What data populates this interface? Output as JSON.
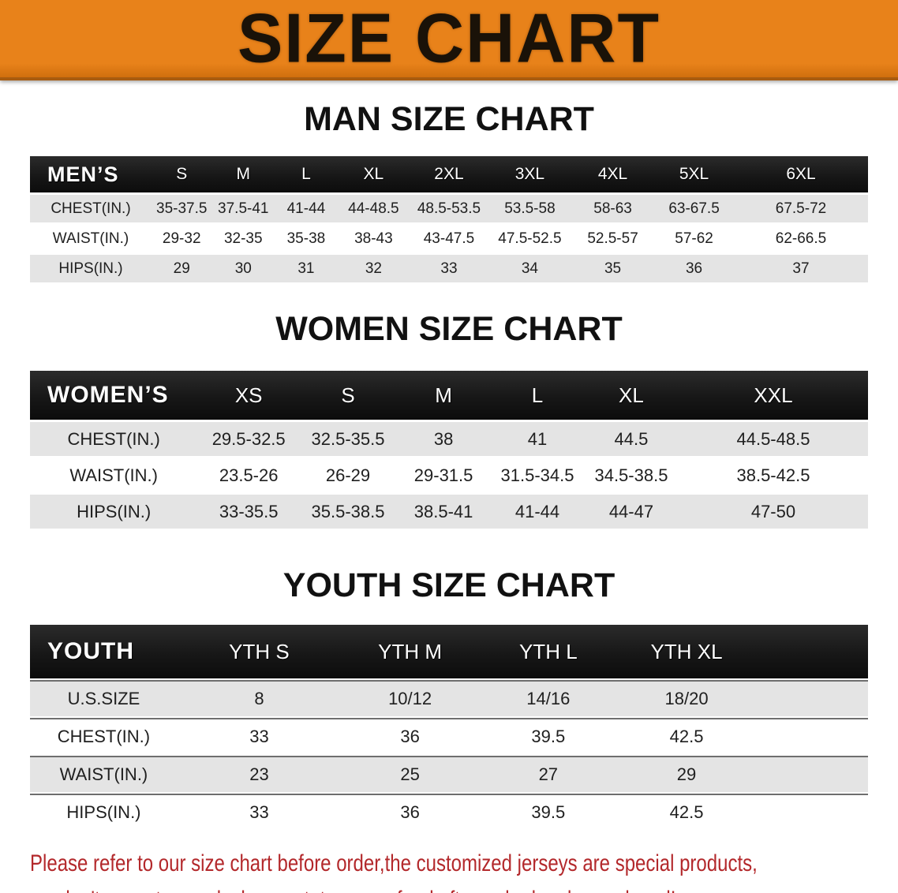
{
  "banner": {
    "title": "SIZE CHART"
  },
  "colors": {
    "banner_bg": "#e8821a",
    "banner_text": "#1a1208",
    "header_band_bg": "#171717",
    "header_band_text": "#ffffff",
    "row_stripe_bg": "#e4e4e4",
    "table_text": "#1f1f1f",
    "footnote_text": "#b3282b"
  },
  "sections": {
    "men": {
      "title": "MAN SIZE CHART",
      "corner": "MEN’S",
      "columns": [
        "S",
        "M",
        "L",
        "XL",
        "2XL",
        "3XL",
        "4XL",
        "5XL",
        "6XL"
      ],
      "rows": [
        {
          "label": "CHEST(IN.)",
          "values": [
            "35-37.5",
            "37.5-41",
            "41-44",
            "44-48.5",
            "48.5-53.5",
            "53.5-58",
            "58-63",
            "63-67.5",
            "67.5-72"
          ]
        },
        {
          "label": "WAIST(IN.)",
          "values": [
            "29-32",
            "32-35",
            "35-38",
            "38-43",
            "43-47.5",
            "47.5-52.5",
            "52.5-57",
            "57-62",
            "62-66.5"
          ]
        },
        {
          "label": "HIPS(IN.)",
          "values": [
            "29",
            "30",
            "31",
            "32",
            "33",
            "34",
            "35",
            "36",
            "37"
          ]
        }
      ]
    },
    "women": {
      "title": "WOMEN SIZE CHART",
      "corner": "WOMEN’S",
      "columns": [
        "XS",
        "S",
        "M",
        "L",
        "XL",
        "XXL"
      ],
      "rows": [
        {
          "label": "CHEST(IN.)",
          "values": [
            "29.5-32.5",
            "32.5-35.5",
            "38",
            "41",
            "44.5",
            "44.5-48.5"
          ]
        },
        {
          "label": "WAIST(IN.)",
          "values": [
            "23.5-26",
            "26-29",
            "29-31.5",
            "31.5-34.5",
            "34.5-38.5",
            "38.5-42.5"
          ]
        },
        {
          "label": "HIPS(IN.)",
          "values": [
            "33-35.5",
            "35.5-38.5",
            "38.5-41",
            "41-44",
            "44-47",
            "47-50"
          ]
        }
      ]
    },
    "youth": {
      "title": "YOUTH SIZE CHART",
      "corner": "YOUTH",
      "columns": [
        "YTH S",
        "YTH M",
        "YTH L",
        "YTH XL"
      ],
      "rows": [
        {
          "label": "U.S.SIZE",
          "values": [
            "8",
            "10/12",
            "14/16",
            "18/20"
          ]
        },
        {
          "label": "CHEST(IN.)",
          "values": [
            "33",
            "36",
            "39.5",
            "42.5"
          ]
        },
        {
          "label": "WAIST(IN.)",
          "values": [
            "23",
            "25",
            "27",
            "29"
          ]
        },
        {
          "label": "HIPS(IN.)",
          "values": [
            "33",
            "36",
            "39.5",
            "42.5"
          ]
        }
      ]
    }
  },
  "footnote": {
    "line1": "Please refer to our size chart before order,the customized jerseys are special products,",
    "line2": "we don't accept cancel, change, teturn or refund after order has been placed!"
  }
}
